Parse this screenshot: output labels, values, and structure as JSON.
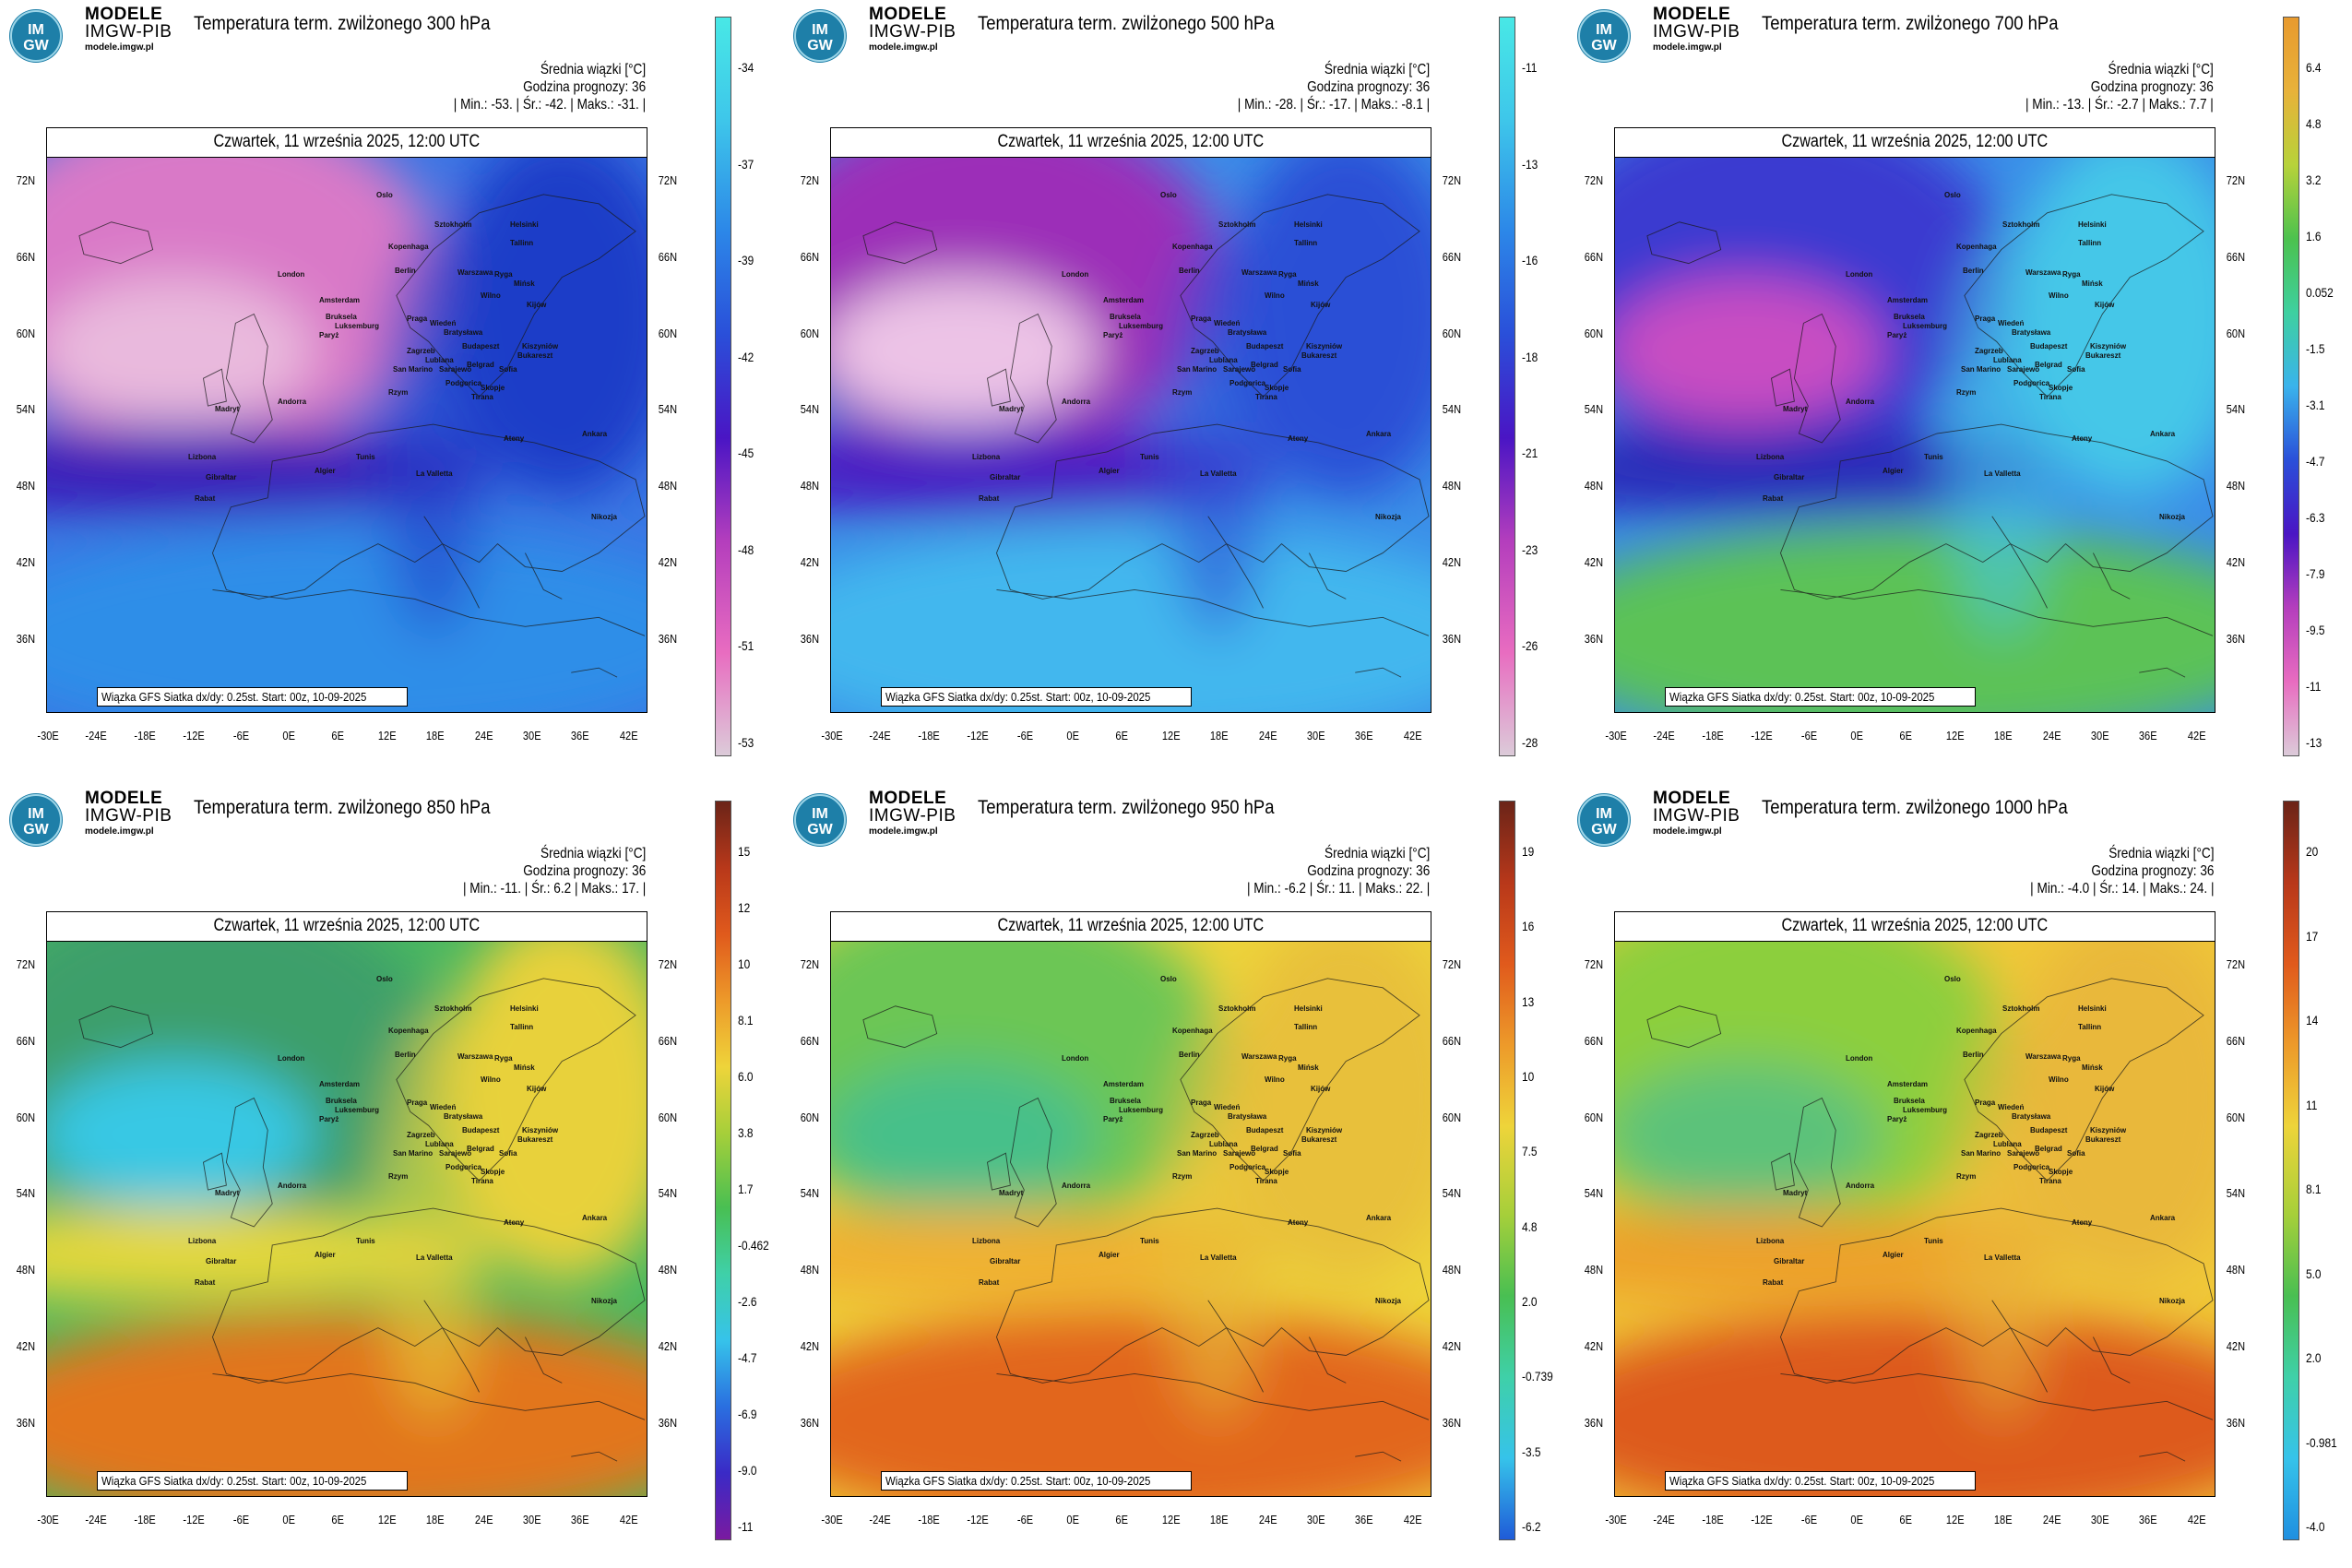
{
  "brand": {
    "line1": "MODELE",
    "line2": "IMGW-PIB",
    "line3": "modele.imgw.pl",
    "logo_text_top": "IM",
    "logo_text_bottom": "GW"
  },
  "common": {
    "subtitle": "Średnia wiązki [°C]",
    "forecast_hour": "Godzina prognozy: 36",
    "date": "Czwartek, 11 września 2025, 12:00 UTC",
    "footer": "Wiązka GFS Siatka dx/dy: 0.25st. Start: 00z, 10-09-2025",
    "lat_labels": [
      "72N",
      "66N",
      "60N",
      "54N",
      "48N",
      "42N",
      "36N"
    ],
    "lon_labels": [
      "-30E",
      "-24E",
      "-18E",
      "-12E",
      "-6E",
      "0E",
      "6E",
      "12E",
      "18E",
      "24E",
      "30E",
      "36E",
      "42E"
    ],
    "cities": [
      "London",
      "Amsterdam",
      "Bruksela",
      "Paryż",
      "Luksemburg",
      "Oslo",
      "Sztokholm",
      "Helsinki",
      "Tallinn",
      "Ryga",
      "Wilno",
      "Kopenhaga",
      "Berlin",
      "Warszawa",
      "Mińsk",
      "Praga",
      "Wiedeń",
      "Bratysława",
      "Budapeszt",
      "Kiszyniów",
      "Kijów",
      "Lublana",
      "Zagrzeb",
      "Belgrad",
      "Bukareszt",
      "Sarajewo",
      "San Marino",
      "Rzym",
      "Podgorica",
      "Skopje",
      "Sofia",
      "Tirana",
      "Ankara",
      "Ateny",
      "La Valletta",
      "Tunis",
      "Algier",
      "Andorra",
      "Madryt",
      "Lizbona",
      "Gibraltar",
      "Rabat",
      "Nikozja"
    ]
  },
  "panels": [
    {
      "title": "Temperatura term. zwilżonego 300 hPa",
      "stats": "| Min.:   -53. | Śr.:   -42. | Maks.:   -31. |",
      "colorbar_ticks": [
        "-34",
        "-37",
        "-39",
        "-42",
        "-45",
        "-48",
        "-51",
        "-53"
      ],
      "colors": [
        "#dccbd9",
        "#e86cc0",
        "#b43ebd",
        "#4a15c4",
        "#2a4fd9",
        "#2c87e8",
        "#3ec6ea",
        "#48e8e6"
      ],
      "map_colors": {
        "base": "#3a76e4",
        "north": "#d979c7",
        "hot": "#e9b9dd",
        "band": "#3b1ab7",
        "east": "#1f3cc8",
        "south": "#2f8ee8"
      }
    },
    {
      "title": "Temperatura term. zwilżonego 500 hPa",
      "stats": "| Min.:   -28. | Śr.:   -17. | Maks.:   -8.1 |",
      "colorbar_ticks": [
        "-11",
        "-13",
        "-16",
        "-18",
        "-21",
        "-23",
        "-26",
        "-28"
      ],
      "colors": [
        "#dccbd9",
        "#e86cc0",
        "#b43ebd",
        "#4a15c4",
        "#2a4fd9",
        "#2c87e8",
        "#3ec6ea",
        "#48e8e6"
      ],
      "map_colors": {
        "base": "#3a8de8",
        "north": "#9c2fb8",
        "hot": "#ecc3e6",
        "band": "#4a1ec2",
        "east": "#2b4fd6",
        "south": "#42b7ee"
      }
    },
    {
      "title": "Temperatura term. zwilżonego 700 hPa",
      "stats": "| Min.:   -13. | Śr.:   -2.7 | Maks.:   7.7 |",
      "colorbar_ticks": [
        "6.4",
        "4.8",
        "3.2",
        "1.6",
        "0.052",
        "-1.5",
        "-3.1",
        "-4.7",
        "-6.3",
        "-7.9",
        "-9.5",
        "-11",
        "-13"
      ],
      "colors": [
        "#dccbd9",
        "#e86cc0",
        "#b43ebd",
        "#4a15c4",
        "#2a4fd9",
        "#3ab3ec",
        "#3ed0a0",
        "#4cc24e",
        "#b7d23a",
        "#e8b23a",
        "#e89a2e"
      ],
      "map_colors": {
        "base": "#3a8de8",
        "north": "#3b3ad0",
        "hot": "#c84ec2",
        "band": "#2a2ab8",
        "east": "#45c7e8",
        "south": "#5cc257"
      }
    },
    {
      "title": "Temperatura term. zwilżonego 850 hPa",
      "stats": "| Min.:   -11. | Śr.:   6.2 | Maks.:   17. |",
      "colorbar_ticks": [
        "15",
        "12",
        "10",
        "8.1",
        "6.0",
        "3.8",
        "1.7",
        "-0.462",
        "-2.6",
        "-4.7",
        "-6.9",
        "-9.0",
        "-11"
      ],
      "colors": [
        "#7a1aa0",
        "#3a2ac6",
        "#2a6fe0",
        "#36c3ea",
        "#3fd0a8",
        "#49bf52",
        "#a6cf3a",
        "#eed43a",
        "#ed9a2a",
        "#e05a1c",
        "#b8381a",
        "#6b2418"
      ],
      "map_colors": {
        "base": "#4ab860",
        "north": "#3e9f6a",
        "hot": "#39c8e4",
        "band": "#e6d83a",
        "east": "#e8d13a",
        "south": "#e2761e"
      }
    },
    {
      "title": "Temperatura term. zwilżonego 950 hPa",
      "stats": "| Min.:   -6.2 | Śr.:   11. | Maks.:   22. |",
      "colorbar_ticks": [
        "19",
        "16",
        "13",
        "10",
        "7.5",
        "4.8",
        "2.0",
        "-0.739",
        "-3.5",
        "-6.2"
      ],
      "colors": [
        "#1f5bd8",
        "#36c3ea",
        "#3fd0a8",
        "#49bf52",
        "#a6cf3a",
        "#eed43a",
        "#ed9a2a",
        "#e05a1c",
        "#b8381a",
        "#6b2418"
      ],
      "map_colors": {
        "base": "#eed43a",
        "north": "#6cc654",
        "hot": "#46c08a",
        "band": "#f0b030",
        "east": "#e8c03a",
        "south": "#e2661a"
      }
    },
    {
      "title": "Temperatura term. zwilżonego 1000 hPa",
      "stats": "| Min.:   -4.0 | Śr.:   14. | Maks.:   24. |",
      "colorbar_ticks": [
        "20",
        "17",
        "14",
        "11",
        "8.1",
        "5.0",
        "2.0",
        "-0.981",
        "-4.0"
      ],
      "colors": [
        "#1f8fe0",
        "#36c3ea",
        "#3fd0a8",
        "#49bf52",
        "#a6cf3a",
        "#eed43a",
        "#ed9a2a",
        "#e05a1c",
        "#b8381a",
        "#6b2418"
      ],
      "map_colors": {
        "base": "#f0c838",
        "north": "#8ccf3e",
        "hot": "#5cc27a",
        "band": "#eda02c",
        "east": "#e9b83a",
        "south": "#dd5a1a"
      }
    }
  ]
}
